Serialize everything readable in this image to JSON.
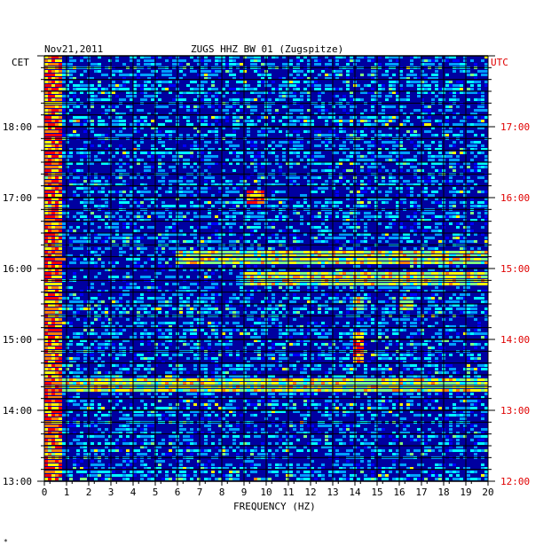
{
  "header": {
    "date": "Nov21,2011",
    "station": "ZUGS HHZ BW 01 (Zugspitze)",
    "left_zone": "CET",
    "right_zone": "UTC"
  },
  "footer_mark": "*",
  "colors": {
    "background": "#0000a0",
    "grid": "#000000",
    "utc_labels": "#e00000"
  },
  "chart_data": {
    "type": "heatmap",
    "title": "ZUGS HHZ BW 01 (Zugspitze)",
    "xlabel": "FREQUENCY (HZ)",
    "x_range": [
      0,
      20
    ],
    "x_ticks": [
      "0",
      "1",
      "2",
      "3",
      "4",
      "5",
      "6",
      "7",
      "8",
      "9",
      "10",
      "11",
      "12",
      "13",
      "14",
      "15",
      "16",
      "17",
      "18",
      "19",
      "20"
    ],
    "left_axis": {
      "zone": "CET",
      "ticks": [
        "13:00",
        "14:00",
        "15:00",
        "16:00",
        "17:00",
        "18:00"
      ],
      "range": [
        "13:00",
        "19:00"
      ]
    },
    "right_axis": {
      "zone": "UTC",
      "ticks": [
        "12:00",
        "13:00",
        "14:00",
        "15:00",
        "16:00",
        "17:00"
      ],
      "range": [
        "12:00",
        "18:00"
      ]
    },
    "grid": true,
    "colormap": [
      "#000080",
      "#0000ff",
      "#00a0ff",
      "#00ffff",
      "#80ff80",
      "#ffff00",
      "#ff8000",
      "#ff0000"
    ],
    "features": [
      {
        "freq_hz": [
          0,
          0.8
        ],
        "time_cet": [
          "13:00",
          "19:00"
        ],
        "level": "high"
      },
      {
        "freq_hz": [
          9.2,
          9.9
        ],
        "time_cet": [
          "16:55",
          "17:05"
        ],
        "level": "high"
      },
      {
        "freq_hz": [
          14.0,
          14.4
        ],
        "time_cet": [
          "14:40",
          "15:05"
        ],
        "level": "high"
      },
      {
        "freq_hz": [
          14.0,
          14.4
        ],
        "time_cet": [
          "15:25",
          "15:35"
        ],
        "level": "medium"
      },
      {
        "freq_hz": [
          16.0,
          16.6
        ],
        "time_cet": [
          "15:25",
          "15:35"
        ],
        "level": "medium"
      },
      {
        "freq_hz": [
          9.0,
          20.0
        ],
        "time_cet": [
          "15:45",
          "15:55"
        ],
        "level": "medium"
      },
      {
        "freq_hz": [
          6.0,
          20.0
        ],
        "time_cet": [
          "16:05",
          "16:15"
        ],
        "level": "medium"
      },
      {
        "freq_hz": [
          0,
          20.0
        ],
        "time_cet": [
          "14:15",
          "14:25"
        ],
        "level": "medium"
      }
    ]
  }
}
